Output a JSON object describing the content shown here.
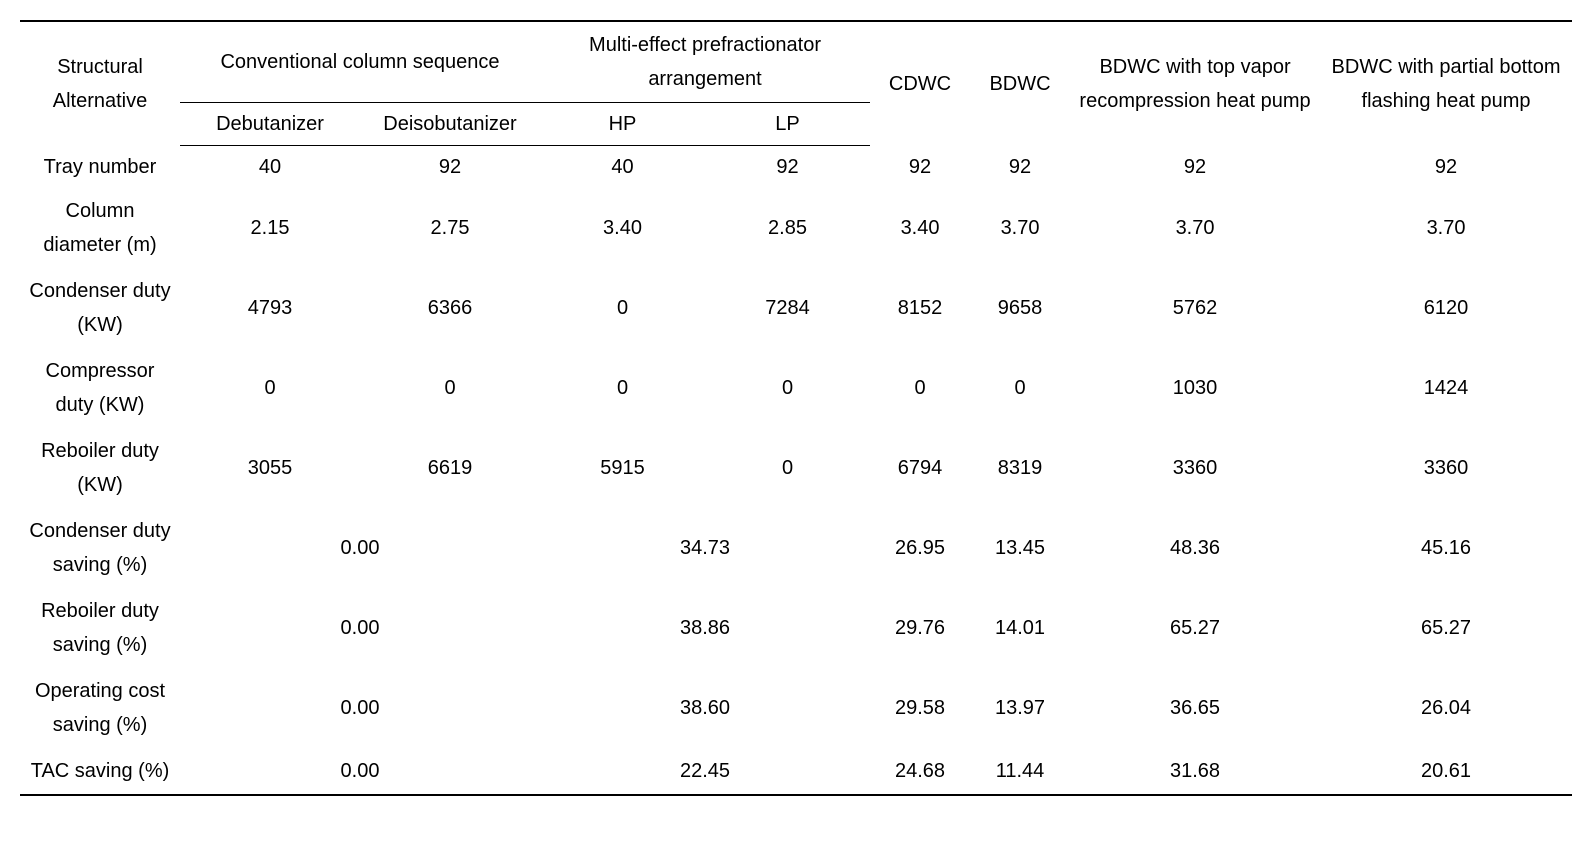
{
  "table": {
    "header": {
      "structural": "Structural Alternative",
      "conv": "Conventional column sequence",
      "multi": "Multi-effect prefractionator arrangement",
      "cdwc": "CDWC",
      "bdwc": "BDWC",
      "bdwc_top": "BDWC with top vapor recompression heat pump",
      "bdwc_bot": "BDWC with partial bottom flashing heat pump",
      "sub": {
        "debut": "Debutanizer",
        "deiso": "Deisobutanizer",
        "hp": "HP",
        "lp": "LP"
      }
    },
    "rowLabels": {
      "tray": "Tray number",
      "diameter": "Column diameter (m)",
      "cond": "Condenser duty (KW)",
      "comp": "Compressor duty (KW)",
      "reb": "Reboiler duty (KW)",
      "condSave": "Condenser duty saving (%)",
      "rebSave": "Reboiler duty saving (%)",
      "opSave": "Operating cost saving (%)",
      "tacSave": "TAC saving (%)"
    },
    "data": {
      "tray": [
        "40",
        "92",
        "40",
        "92",
        "92",
        "92",
        "92",
        "92"
      ],
      "diameter": [
        "2.15",
        "2.75",
        "3.40",
        "2.85",
        "3.40",
        "3.70",
        "3.70",
        "3.70"
      ],
      "cond": [
        "4793",
        "6366",
        "0",
        "7284",
        "8152",
        "9658",
        "5762",
        "6120"
      ],
      "comp": [
        "0",
        "0",
        "0",
        "0",
        "0",
        "0",
        "1030",
        "1424"
      ],
      "reb": [
        "3055",
        "6619",
        "5915",
        "0",
        "6794",
        "8319",
        "3360",
        "3360"
      ],
      "condSave": [
        "0.00",
        "34.73",
        "26.95",
        "13.45",
        "48.36",
        "45.16"
      ],
      "rebSave": [
        "0.00",
        "38.86",
        "29.76",
        "14.01",
        "65.27",
        "65.27"
      ],
      "opSave": [
        "0.00",
        "38.60",
        "29.58",
        "13.97",
        "36.65",
        "26.04"
      ],
      "tacSave": [
        "0.00",
        "22.45",
        "24.68",
        "11.44",
        "31.68",
        "20.61"
      ]
    },
    "style": {
      "font_size": 20,
      "text_color": "#000000",
      "background": "#ffffff",
      "rule_color": "#000000",
      "top_rule_width": 2,
      "sub_rule_width": 1.5,
      "row_line_height": 1.5
    }
  }
}
